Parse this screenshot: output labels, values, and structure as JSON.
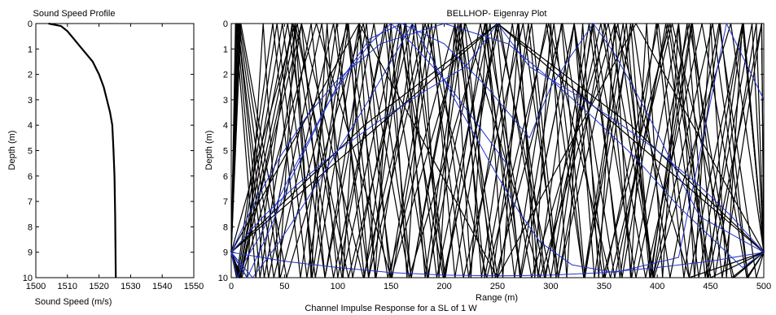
{
  "figure": {
    "caption": "Channel Impulse Response for a SL of 1 W"
  },
  "chart_data": [
    {
      "type": "line",
      "title": "Sound Speed Profile",
      "xlabel": "Sound Speed (m/s)",
      "ylabel": "Depth (m)",
      "xlim": [
        1500,
        1550
      ],
      "ylim": [
        0,
        10
      ],
      "y_reversed": true,
      "xticks": [
        1500,
        1510,
        1520,
        1530,
        1540,
        1550
      ],
      "yticks": [
        0,
        1,
        2,
        3,
        4,
        5,
        6,
        7,
        8,
        9,
        10
      ],
      "grid": false,
      "series": [
        {
          "color": "#000000",
          "x": [
            1504,
            1508,
            1510,
            1512,
            1514,
            1516,
            1518,
            1520,
            1521.5,
            1522.5,
            1523.5,
            1524.2,
            1524.6,
            1524.9,
            1525.1,
            1525.3
          ],
          "y": [
            0,
            0.1,
            0.3,
            0.6,
            0.9,
            1.2,
            1.5,
            2.0,
            2.5,
            3.0,
            3.5,
            4.0,
            5.0,
            6.0,
            7.5,
            10.0
          ]
        }
      ]
    },
    {
      "type": "line",
      "title": "BELLHOP- Eigenray Plot",
      "xlabel": "Range (m)",
      "ylabel": "Depth (m)",
      "xlim": [
        0,
        500
      ],
      "ylim": [
        0,
        10
      ],
      "y_reversed": true,
      "xticks": [
        0,
        50,
        100,
        150,
        200,
        250,
        300,
        350,
        400,
        450,
        500
      ],
      "yticks": [
        0,
        1,
        2,
        3,
        4,
        5,
        6,
        7,
        8,
        9,
        10
      ],
      "grid": false,
      "source_depth": 9,
      "receiver": {
        "range": 500,
        "depth": 9
      },
      "ray_colors": {
        "bottom_bounce": "#000000",
        "refracted": "#2233cc"
      },
      "rays": [
        {
          "color": "#000000",
          "x": [
            0,
            5,
            39,
            65,
            99,
            125,
            159,
            185,
            219,
            245,
            279,
            305,
            339,
            365,
            399,
            425,
            459,
            485,
            500
          ],
          "y": [
            9,
            10,
            0,
            10,
            0,
            10,
            0,
            10,
            0,
            10,
            0,
            10,
            0,
            10,
            0,
            10,
            0,
            10,
            9
          ]
        },
        {
          "color": "#000000",
          "x": [
            0,
            6,
            43,
            71,
            108,
            136,
            173,
            201,
            238,
            266,
            303,
            331,
            368,
            396,
            433,
            461,
            498,
            500
          ],
          "y": [
            9,
            10,
            0,
            10,
            0,
            10,
            0,
            10,
            0,
            10,
            0,
            10,
            0,
            10,
            0,
            10,
            0,
            9
          ]
        },
        {
          "color": "#000000",
          "x": [
            0,
            7,
            48,
            79,
            120,
            151,
            192,
            223,
            264,
            295,
            336,
            367,
            408,
            439,
            480,
            500
          ],
          "y": [
            9,
            10,
            0,
            10,
            0,
            10,
            0,
            10,
            0,
            10,
            0,
            10,
            0,
            10,
            0,
            9
          ]
        },
        {
          "color": "#000000",
          "x": [
            0,
            7,
            53,
            88,
            134,
            169,
            215,
            250,
            296,
            331,
            377,
            412,
            458,
            493,
            500
          ],
          "y": [
            9,
            10,
            0,
            10,
            0,
            10,
            0,
            10,
            0,
            10,
            0,
            10,
            0,
            10,
            9
          ]
        },
        {
          "color": "#000000",
          "x": [
            0,
            8,
            58,
            96,
            146,
            184,
            234,
            272,
            322,
            360,
            410,
            448,
            498,
            500
          ],
          "y": [
            9,
            10,
            0,
            10,
            0,
            10,
            0,
            10,
            0,
            10,
            0,
            10,
            0,
            9
          ]
        },
        {
          "color": "#000000",
          "x": [
            0,
            9,
            62,
            104,
            157,
            199,
            252,
            294,
            347,
            389,
            442,
            484,
            500
          ],
          "y": [
            9,
            10,
            0,
            10,
            0,
            10,
            0,
            10,
            0,
            10,
            0,
            10,
            9
          ]
        },
        {
          "color": "#000000",
          "x": [
            0,
            4,
            23,
            57,
            76,
            110,
            129,
            163,
            182,
            216,
            235,
            269,
            288,
            322,
            341,
            375,
            394,
            428,
            447,
            481,
            500
          ],
          "y": [
            9,
            0,
            10,
            0,
            10,
            0,
            10,
            0,
            10,
            0,
            10,
            0,
            10,
            0,
            10,
            0,
            10,
            0,
            10,
            0,
            9
          ]
        },
        {
          "color": "#000000",
          "x": [
            0,
            5,
            27,
            66,
            88,
            127,
            149,
            188,
            210,
            249,
            271,
            310,
            332,
            371,
            393,
            432,
            454,
            493,
            500
          ],
          "y": [
            9,
            0,
            10,
            0,
            10,
            0,
            10,
            0,
            10,
            0,
            10,
            0,
            10,
            0,
            10,
            0,
            10,
            0,
            9
          ]
        },
        {
          "color": "#000000",
          "x": [
            0,
            6,
            31,
            75,
            100,
            144,
            169,
            213,
            238,
            282,
            307,
            351,
            376,
            420,
            445,
            489,
            500
          ],
          "y": [
            9,
            0,
            10,
            0,
            10,
            0,
            10,
            0,
            10,
            0,
            10,
            0,
            10,
            0,
            10,
            0,
            9
          ]
        },
        {
          "color": "#000000",
          "x": [
            0,
            6,
            35,
            85,
            114,
            164,
            193,
            243,
            272,
            322,
            351,
            401,
            430,
            480,
            500
          ],
          "y": [
            9,
            0,
            10,
            0,
            10,
            0,
            10,
            0,
            10,
            0,
            10,
            0,
            10,
            0,
            9
          ]
        },
        {
          "color": "#000000",
          "x": [
            0,
            7,
            40,
            96,
            129,
            185,
            218,
            274,
            307,
            363,
            396,
            452,
            485,
            500
          ],
          "y": [
            9,
            0,
            10,
            0,
            10,
            0,
            10,
            0,
            10,
            0,
            10,
            0,
            10,
            9
          ]
        },
        {
          "color": "#000000",
          "x": [
            0,
            8,
            46,
            109,
            147,
            210,
            248,
            311,
            349,
            412,
            450,
            500
          ],
          "y": [
            9,
            0,
            10,
            0,
            10,
            0,
            10,
            0,
            10,
            0,
            10,
            9
          ]
        },
        {
          "color": "#000000",
          "x": [
            0,
            9,
            52,
            124,
            167,
            239,
            282,
            354,
            397,
            469,
            500
          ],
          "y": [
            9,
            0,
            10,
            0,
            10,
            0,
            10,
            0,
            10,
            0,
            9
          ]
        },
        {
          "color": "#000000",
          "x": [
            0,
            8,
            66,
            124,
            182,
            240,
            298,
            356,
            414,
            472,
            500
          ],
          "y": [
            9,
            10,
            0,
            10,
            0,
            10,
            0,
            10,
            0,
            10,
            9
          ]
        },
        {
          "color": "#000000",
          "x": [
            0,
            10,
            80,
            150,
            220,
            290,
            360,
            430,
            500
          ],
          "y": [
            9,
            10,
            0,
            10,
            0,
            10,
            0,
            10,
            9
          ]
        },
        {
          "color": "#000000",
          "x": [
            0,
            60,
            110,
            170,
            200,
            250,
            300,
            340,
            380,
            430,
            470,
            500
          ],
          "y": [
            9,
            0,
            10,
            0,
            10,
            0,
            10,
            0,
            10,
            0,
            10,
            9
          ]
        },
        {
          "color": "#000000",
          "x": [
            0,
            120,
            250,
            380,
            500
          ],
          "y": [
            9,
            0,
            10,
            0,
            9
          ]
        },
        {
          "color": "#000000",
          "x": [
            0,
            125,
            250,
            375,
            500
          ],
          "y": [
            9,
            4,
            0,
            4,
            9
          ]
        },
        {
          "color": "#000000",
          "x": [
            0,
            250,
            500
          ],
          "y": [
            9,
            0,
            9
          ]
        },
        {
          "color": "#000000",
          "x": [
            0,
            15,
            30,
            45,
            60,
            75,
            90,
            105,
            120,
            135,
            150,
            165,
            180,
            195,
            210,
            225,
            240,
            255,
            270,
            285,
            300,
            315,
            330,
            345,
            360,
            375,
            390,
            405,
            420,
            435,
            450,
            465,
            480,
            500
          ],
          "y": [
            9,
            10,
            0,
            10,
            0,
            10,
            0,
            10,
            0,
            10,
            0,
            10,
            0,
            10,
            0,
            10,
            0,
            10,
            0,
            10,
            0,
            10,
            0,
            10,
            0,
            10,
            0,
            10,
            0,
            10,
            0,
            10,
            0,
            9
          ]
        },
        {
          "color": "#2233cc",
          "x": [
            0,
            50,
            100,
            150,
            200,
            250,
            300,
            350,
            400,
            450,
            500
          ],
          "y": [
            9,
            9.35,
            9.6,
            9.8,
            9.9,
            9.93,
            9.9,
            9.8,
            9.6,
            9.35,
            9
          ]
        },
        {
          "color": "#2233cc",
          "x": [
            0,
            30,
            60,
            100,
            140,
            180,
            220,
            250,
            280,
            320,
            360,
            400,
            440,
            470,
            500
          ],
          "y": [
            9,
            7.6,
            6.4,
            5.0,
            3.8,
            2.7,
            1.7,
            0,
            1.7,
            2.7,
            3.8,
            5.0,
            6.4,
            7.6,
            9
          ]
        },
        {
          "color": "#2233cc",
          "x": [
            0,
            20,
            45,
            70,
            100,
            140,
            200,
            260,
            300,
            340,
            380,
            420,
            450,
            480,
            500
          ],
          "y": [
            9,
            7.2,
            5.3,
            3.7,
            2.2,
            0.8,
            0,
            0.8,
            2.2,
            3.7,
            5.3,
            7.2,
            8.4,
            9.6,
            9
          ]
        },
        {
          "color": "#2233cc",
          "x": [
            0,
            20,
            45,
            70,
            100,
            125,
            150,
            170,
            190,
            210,
            230,
            250,
            270,
            290,
            320,
            360,
            420,
            465,
            500
          ],
          "y": [
            9,
            10,
            8.6,
            7.0,
            5.0,
            3.3,
            1.5,
            0,
            1.5,
            3.0,
            4.5,
            6.0,
            7.4,
            8.6,
            9.5,
            9.8,
            9.2,
            0,
            3
          ]
        },
        {
          "color": "#2233cc",
          "x": [
            0,
            15,
            35,
            55,
            75,
            100,
            130,
            160,
            200,
            240,
            280,
            300,
            320,
            340,
            360,
            380,
            400,
            420,
            440,
            500
          ],
          "y": [
            9,
            10,
            8.2,
            6.2,
            4.5,
            2.4,
            0.6,
            0,
            0.8,
            2.5,
            4.5,
            2.5,
            1.2,
            0,
            1.2,
            2.7,
            4.3,
            6.0,
            7.6,
            9
          ]
        },
        {
          "color": "#2233cc",
          "x": [
            0,
            6,
            12,
            25,
            40,
            55,
            70,
            90,
            110,
            130,
            150,
            170,
            200,
            230,
            260
          ],
          "y": [
            9,
            10,
            9.4,
            8.5,
            7.3,
            6.0,
            4.8,
            3.2,
            1.9,
            0.8,
            0,
            0.8,
            2.2,
            3.9,
            5.6
          ]
        }
      ]
    }
  ]
}
